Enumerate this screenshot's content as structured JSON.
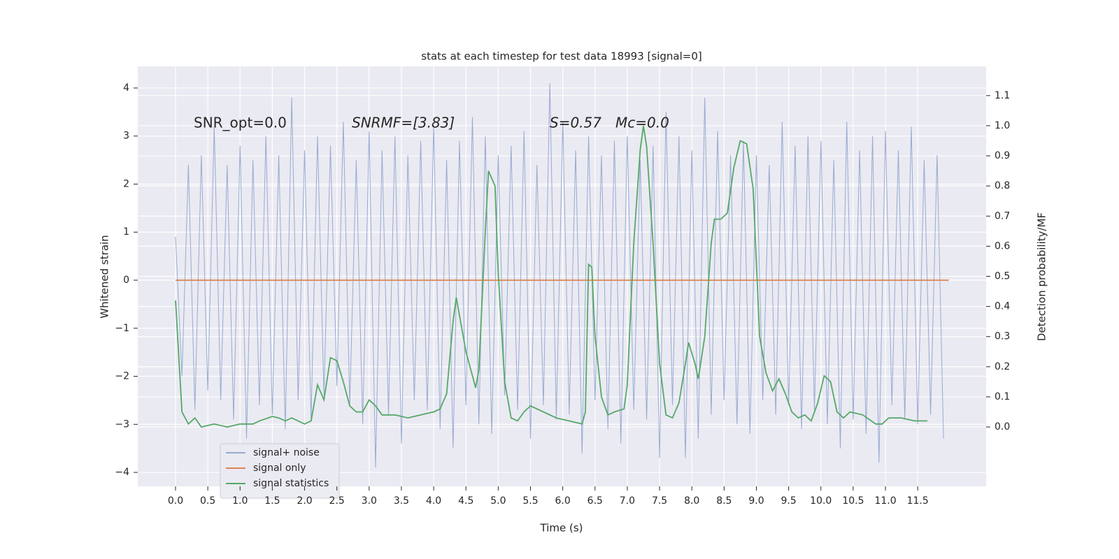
{
  "chart_data": {
    "type": "line",
    "title": "stats at each timestep for test data 18993 [signal=0]",
    "xlabel": "Time (s)",
    "ylabel": "Whitened strain",
    "y2label": "Detection probability/MF",
    "annotations": [
      "SNR_opt=0.0",
      "SNRMF=[3.83]",
      "S=0.57",
      "Mc=0.0"
    ],
    "xlim": [
      -0.585,
      12.56
    ],
    "ylim": [
      -4.29,
      4.45
    ],
    "y2lim": [
      -0.197,
      1.197
    ],
    "xticks": [
      {
        "value": 0,
        "label": "0.0"
      },
      {
        "value": 0.5,
        "label": "0.5"
      },
      {
        "value": 1,
        "label": "1.0"
      },
      {
        "value": 1.5,
        "label": "1.5"
      },
      {
        "value": 2,
        "label": "2.0"
      },
      {
        "value": 2.5,
        "label": "2.5"
      },
      {
        "value": 3,
        "label": "3.0"
      },
      {
        "value": 3.5,
        "label": "3.5"
      },
      {
        "value": 4,
        "label": "4.0"
      },
      {
        "value": 4.5,
        "label": "4.5"
      },
      {
        "value": 5,
        "label": "5.0"
      },
      {
        "value": 5.5,
        "label": "5.5"
      },
      {
        "value": 6,
        "label": "6.0"
      },
      {
        "value": 6.5,
        "label": "6.5"
      },
      {
        "value": 7,
        "label": "7.0"
      },
      {
        "value": 7.5,
        "label": "7.5"
      },
      {
        "value": 8,
        "label": "8.0"
      },
      {
        "value": 8.5,
        "label": "8.5"
      },
      {
        "value": 9,
        "label": "9.0"
      },
      {
        "value": 9.5,
        "label": "9.5"
      },
      {
        "value": 10,
        "label": "10.0"
      },
      {
        "value": 10.5,
        "label": "10.5"
      },
      {
        "value": 11,
        "label": "11.0"
      },
      {
        "value": 11.5,
        "label": "11.5"
      }
    ],
    "yticks": [
      {
        "value": -4,
        "label": "−4"
      },
      {
        "value": -3,
        "label": "−3"
      },
      {
        "value": -2,
        "label": "−2"
      },
      {
        "value": -1,
        "label": "−1"
      },
      0,
      1,
      2,
      3,
      4
    ],
    "y2ticks": [
      {
        "value": 0,
        "label": "0.0"
      },
      {
        "value": 0.1,
        "label": "0.1"
      },
      {
        "value": 0.2,
        "label": "0.2"
      },
      {
        "value": 0.3,
        "label": "0.3"
      },
      {
        "value": 0.4,
        "label": "0.4"
      },
      {
        "value": 0.5,
        "label": "0.5"
      },
      {
        "value": 0.6,
        "label": "0.6"
      },
      {
        "value": 0.7,
        "label": "0.7"
      },
      {
        "value": 0.8,
        "label": "0.8"
      },
      {
        "value": 0.9,
        "label": "0.9"
      },
      {
        "value": 1,
        "label": "1.0"
      },
      {
        "value": 1.1,
        "label": "1.1"
      }
    ],
    "grid": true,
    "legend": "lower left",
    "series": [
      {
        "name": "signal+ noise",
        "color": "#98aad2",
        "x": [
          0,
          0.1,
          0.2,
          0.3,
          0.4,
          0.5,
          0.6,
          0.7,
          0.8,
          0.9,
          1,
          1.1,
          1.2,
          1.3,
          1.4,
          1.5,
          1.6,
          1.7,
          1.8,
          1.9,
          2,
          2.1,
          2.2,
          2.3,
          2.4,
          2.5,
          2.6,
          2.7,
          2.8,
          2.9,
          3,
          3.1,
          3.2,
          3.3,
          3.4,
          3.5,
          3.6,
          3.7,
          3.8,
          3.9,
          4,
          4.1,
          4.2,
          4.3,
          4.4,
          4.5,
          4.6,
          4.7,
          4.8,
          4.9,
          5,
          5.1,
          5.2,
          5.3,
          5.4,
          5.5,
          5.6,
          5.7,
          5.8,
          5.9,
          6,
          6.1,
          6.2,
          6.3,
          6.4,
          6.5,
          6.6,
          6.7,
          6.8,
          6.9,
          7,
          7.1,
          7.2,
          7.3,
          7.4,
          7.5,
          7.6,
          7.7,
          7.8,
          7.9,
          8,
          8.1,
          8.2,
          8.3,
          8.4,
          8.5,
          8.6,
          8.7,
          8.8,
          8.9,
          9,
          9.1,
          9.2,
          9.3,
          9.4,
          9.5,
          9.6,
          9.7,
          9.8,
          9.9,
          10,
          10.1,
          10.2,
          10.3,
          10.4,
          10.5,
          10.6,
          10.7,
          10.8,
          10.9,
          11,
          11.1,
          11.2,
          11.3,
          11.4,
          11.5,
          11.6,
          11.7,
          11.8,
          11.9
        ],
        "values": [
          0.9,
          -2.0,
          2.4,
          -2.7,
          2.6,
          -2.3,
          3.2,
          -2.5,
          2.4,
          -2.9,
          2.8,
          -3.3,
          2.5,
          -2.6,
          3.0,
          -2.8,
          2.6,
          -3.1,
          3.8,
          -2.5,
          2.7,
          -2.9,
          3.0,
          -2.4,
          2.8,
          -2.2,
          3.3,
          -2.6,
          2.5,
          -3.0,
          3.1,
          -3.9,
          2.7,
          -2.8,
          3.0,
          -3.4,
          2.6,
          -2.5,
          2.9,
          -2.7,
          3.2,
          -3.1,
          2.5,
          -3.5,
          2.9,
          -2.6,
          3.4,
          -3.0,
          3.0,
          -3.2,
          2.6,
          -2.4,
          2.8,
          -2.7,
          3.1,
          -3.3,
          2.4,
          -2.6,
          4.1,
          -2.9,
          3.3,
          -2.8,
          2.7,
          -3.6,
          3.0,
          -2.5,
          2.6,
          -3.1,
          2.9,
          -3.4,
          3.0,
          -2.7,
          2.5,
          -2.9,
          2.8,
          -3.7,
          3.5,
          -2.6,
          3.0,
          -3.7,
          2.7,
          -3.3,
          3.8,
          -2.8,
          3.1,
          -2.5,
          2.6,
          -3.0,
          2.9,
          -3.2,
          2.6,
          -2.5,
          2.4,
          -2.8,
          3.3,
          -2.6,
          2.8,
          -3.1,
          3.0,
          -2.7,
          2.9,
          -3.0,
          2.5,
          -3.5,
          3.3,
          -2.9,
          2.7,
          -3.2,
          3.0,
          -3.8,
          3.1,
          -2.6,
          2.7,
          -2.9,
          3.2,
          -3.0,
          2.5,
          -2.8,
          2.6,
          -3.3
        ]
      },
      {
        "name": "signal only",
        "color": "#dd8452",
        "x": [
          0,
          11.98
        ],
        "values": [
          0,
          0
        ]
      },
      {
        "name": "signal statistics",
        "color": "#55a868",
        "axis": "y2",
        "x": [
          0,
          0.1,
          0.2,
          0.3,
          0.4,
          0.6,
          0.8,
          1.0,
          1.2,
          1.3,
          1.5,
          1.6,
          1.7,
          1.8,
          1.9,
          2.0,
          2.1,
          2.2,
          2.3,
          2.4,
          2.5,
          2.6,
          2.7,
          2.8,
          2.9,
          3.0,
          3.1,
          3.2,
          3.4,
          3.6,
          3.8,
          4.0,
          4.1,
          4.2,
          4.3,
          4.35,
          4.4,
          4.5,
          4.6,
          4.65,
          4.7,
          4.8,
          4.85,
          4.95,
          5.0,
          5.1,
          5.2,
          5.3,
          5.4,
          5.5,
          5.7,
          5.9,
          6.1,
          6.3,
          6.35,
          6.4,
          6.45,
          6.5,
          6.6,
          6.7,
          6.8,
          6.95,
          7.0,
          7.1,
          7.2,
          7.25,
          7.3,
          7.4,
          7.5,
          7.6,
          7.7,
          7.8,
          7.9,
          7.95,
          8.05,
          8.1,
          8.2,
          8.3,
          8.35,
          8.45,
          8.55,
          8.65,
          8.75,
          8.85,
          8.95,
          9.05,
          9.15,
          9.25,
          9.35,
          9.45,
          9.55,
          9.65,
          9.75,
          9.85,
          9.95,
          10.05,
          10.15,
          10.25,
          10.35,
          10.45,
          10.65,
          10.85,
          10.95,
          11.05,
          11.25,
          11.45,
          11.65
        ],
        "values": [
          0.42,
          0.05,
          0.01,
          0.03,
          0.0,
          0.01,
          0.0,
          0.01,
          0.01,
          0.02,
          0.035,
          0.03,
          0.02,
          0.03,
          0.02,
          0.01,
          0.02,
          0.14,
          0.09,
          0.23,
          0.22,
          0.15,
          0.07,
          0.05,
          0.05,
          0.09,
          0.07,
          0.04,
          0.04,
          0.03,
          0.04,
          0.05,
          0.06,
          0.11,
          0.35,
          0.43,
          0.37,
          0.25,
          0.17,
          0.13,
          0.19,
          0.65,
          0.85,
          0.8,
          0.51,
          0.15,
          0.03,
          0.02,
          0.05,
          0.07,
          0.05,
          0.03,
          0.02,
          0.01,
          0.05,
          0.54,
          0.53,
          0.3,
          0.1,
          0.04,
          0.05,
          0.06,
          0.14,
          0.61,
          0.92,
          1.0,
          0.93,
          0.61,
          0.21,
          0.04,
          0.03,
          0.08,
          0.21,
          0.28,
          0.21,
          0.16,
          0.3,
          0.61,
          0.69,
          0.69,
          0.71,
          0.86,
          0.95,
          0.94,
          0.79,
          0.3,
          0.18,
          0.12,
          0.16,
          0.11,
          0.05,
          0.03,
          0.04,
          0.02,
          0.08,
          0.17,
          0.15,
          0.05,
          0.03,
          0.05,
          0.04,
          0.01,
          0.01,
          0.03,
          0.03,
          0.02,
          0.02
        ]
      }
    ]
  }
}
